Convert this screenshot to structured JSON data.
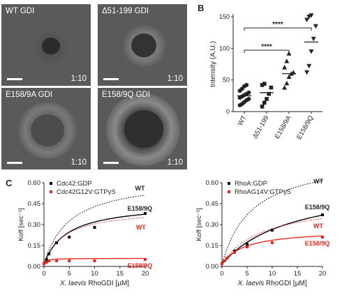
{
  "panel_a": {
    "letter": "A",
    "images": [
      {
        "caption": "WT GDI",
        "ratio": "1:10"
      },
      {
        "caption": "Δ51-199 GDI",
        "ratio": "1:10"
      },
      {
        "caption": "E158/9A GDI",
        "ratio": "1:10"
      },
      {
        "caption": "E158/9Q GDI",
        "ratio": "1:10"
      }
    ]
  },
  "panel_b": {
    "letter": "B",
    "significance": [
      "****",
      "****"
    ]
  },
  "panel_c": {
    "letter": "C"
  },
  "chart_data": [
    {
      "type": "scatter",
      "title": "",
      "ylabel": "Intensity (A.U.)",
      "xlabel": "",
      "categories": [
        "WT",
        "Δ51-199",
        "E158/9A",
        "E158/9Q"
      ],
      "ylim": [
        0,
        150
      ],
      "yticks": [
        0,
        50,
        100,
        150
      ],
      "means": [
        25,
        30,
        60,
        110
      ],
      "points": [
        [
          10,
          12,
          15,
          18,
          20,
          22,
          24,
          26,
          28,
          30,
          33,
          36,
          40,
          42
        ],
        [
          8,
          14,
          20,
          28,
          38,
          42,
          44
        ],
        [
          38,
          45,
          55,
          60,
          62,
          70,
          80,
          92
        ],
        [
          62,
          72,
          95,
          115,
          135,
          145,
          150,
          152
        ]
      ],
      "brackets": [
        [
          "WT",
          "E158/9A"
        ],
        [
          "WT",
          "E158/9Q"
        ]
      ],
      "colors": {
        "WT": "#000000",
        "Δ51-199": "#000000",
        "E158/9A": "#000000",
        "E158/9Q": "#000000"
      }
    },
    {
      "type": "scatter",
      "ylabel": "Koff [sec⁻¹]",
      "xlabel": "X. laevis RhoGDI [µM]",
      "xlabel_italic": "X. laevis",
      "xlabel_rest": " RhoGDI [µM]",
      "xlim": [
        0,
        20
      ],
      "ylim": [
        0,
        0.6
      ],
      "xticks": [
        0,
        5,
        10,
        15,
        20
      ],
      "yticks": [
        "0.00",
        "0.15",
        "0.30",
        "0.45",
        "0.60"
      ],
      "legend": [
        "Cdc42:GDP",
        "Cdc42G12V:GTPγS"
      ],
      "series": [
        {
          "name": "Cdc42:GDP",
          "color": "#000000",
          "x": [
            0,
            0.5,
            1,
            2.5,
            5,
            10,
            20
          ],
          "y": [
            0.02,
            0.05,
            0.09,
            0.17,
            0.21,
            0.28,
            0.38
          ]
        },
        {
          "name": "Cdc42G12V:GTPγS",
          "color": "#e3281f",
          "x": [
            0,
            0.5,
            1,
            2.5,
            5,
            10,
            20
          ],
          "y": [
            0.02,
            0.03,
            0.04,
            0.04,
            0.04,
            0.04,
            0.05
          ]
        }
      ],
      "fits": [
        {
          "label": "WT",
          "color": "#000000",
          "style": "dotted",
          "vmax": 0.62,
          "kd": 5.0
        },
        {
          "label": "E158/9Q",
          "color": "#000000",
          "style": "solid",
          "vmax": 0.44,
          "kd": 4.5
        },
        {
          "label": "WT",
          "color": "#e3281f",
          "style": "dotted",
          "vmax": 0.4,
          "kd": 3.8
        },
        {
          "label": "E158/9Q",
          "color": "#e3281f",
          "style": "solid",
          "vmax": 0.043,
          "kd": 0.4
        }
      ],
      "annotations": [
        "WT",
        "E158/9Q",
        "WT",
        "E158/9Q"
      ]
    },
    {
      "type": "scatter",
      "ylabel": "Koff [sec⁻¹]",
      "xlabel": "X. laevis RhoGDI [µM]",
      "xlabel_italic": "X. laevis",
      "xlabel_rest": " RhoGDI [µM]",
      "xlim": [
        0,
        20
      ],
      "ylim": [
        0,
        0.6
      ],
      "xticks": [
        0,
        5,
        10,
        15,
        20
      ],
      "yticks": [
        "0.00",
        "0.15",
        "0.30",
        "0.45",
        "0.60"
      ],
      "legend": [
        "RhoA:GDP",
        "RhoAG14V:GTPγS"
      ],
      "series": [
        {
          "name": "RhoA:GDP",
          "color": "#000000",
          "x": [
            0,
            0.5,
            1,
            2.5,
            5,
            10,
            20
          ],
          "y": [
            0.02,
            0.04,
            0.06,
            0.11,
            0.16,
            0.26,
            0.37
          ]
        },
        {
          "name": "RhoAG14V:GTPγS",
          "color": "#e3281f",
          "x": [
            0,
            0.5,
            1,
            2.5,
            5,
            10,
            20
          ],
          "y": [
            0.02,
            0.04,
            0.06,
            0.1,
            0.14,
            0.17,
            0.21
          ]
        }
      ],
      "fits": [
        {
          "label": "WT",
          "color": "#000000",
          "style": "dotted",
          "vmax": 0.78,
          "kd": 6.0
        },
        {
          "label": "E158/9Q",
          "color": "#000000",
          "style": "solid",
          "vmax": 0.6,
          "kd": 14.0
        },
        {
          "label": "WT",
          "color": "#e3281f",
          "style": "dotted",
          "vmax": 0.46,
          "kd": 8.0
        },
        {
          "label": "E158/9Q",
          "color": "#e3281f",
          "style": "solid",
          "vmax": 0.25,
          "kd": 4.5
        }
      ],
      "annotations": [
        "WT",
        "E158/9Q",
        "WT",
        "E158/9Q"
      ]
    }
  ]
}
